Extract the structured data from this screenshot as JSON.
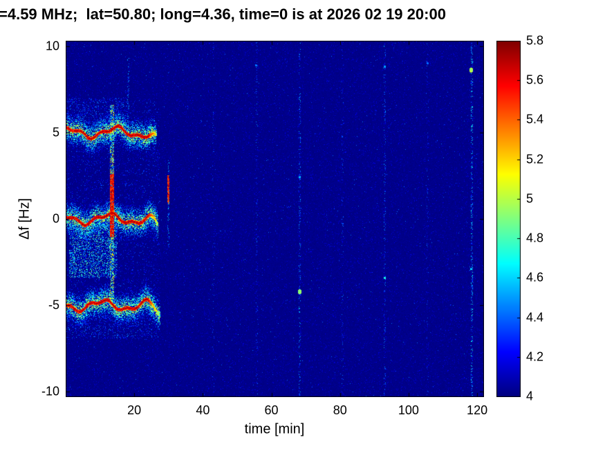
{
  "title": "=4.59 MHz;  lat=50.80; long=4.36, time=0 is at 2026 02 19 20:00",
  "chart_data": {
    "type": "heatmap",
    "title": "=4.59 MHz;  lat=50.80; long=4.36, time=0 is at 2026 02 19 20:00",
    "xlabel": "time [min]",
    "ylabel": "Δf [Hz]",
    "xlim": [
      0,
      122
    ],
    "ylim": [
      -10.3,
      10.3
    ],
    "xticks": [
      20,
      40,
      60,
      80,
      100,
      120
    ],
    "yticks": [
      -10,
      -5,
      0,
      5,
      10
    ],
    "colormap": "jet",
    "value_min": 4,
    "value_max": 5.8,
    "colorbar_ticks": [
      4,
      4.2,
      4.4,
      4.6,
      4.8,
      5,
      5.2,
      5.4,
      5.6,
      5.8
    ],
    "background_value": 4.0,
    "doppler_traces": [
      {
        "name": "upper-sideband-trace",
        "center_hz": 5,
        "t_start": 0,
        "t_end": 26.5,
        "peak_value": 5.8,
        "wiggle_hz": 0.3,
        "end_droop": true
      },
      {
        "name": "carrier-trace",
        "center_hz": 0,
        "t_start": 0,
        "t_end": 27.0,
        "peak_value": 5.8,
        "wiggle_hz": 0.3,
        "end_droop": true
      },
      {
        "name": "lower-sideband-trace",
        "center_hz": -5,
        "t_start": 0,
        "t_end": 27.5,
        "peak_value": 5.8,
        "wiggle_hz": 0.3,
        "end_droop": true
      }
    ],
    "speckle_regions": [
      {
        "t0": 0,
        "t1": 27.5,
        "f0": -7.0,
        "f1": 7.0,
        "count": 2600,
        "v_min": 4.06,
        "v_max": 4.4
      },
      {
        "t0": 1,
        "t1": 15.0,
        "f0": -3.4,
        "f1": -0.3,
        "count": 2200,
        "v_min": 4.1,
        "v_max": 4.9
      },
      {
        "t0": 0,
        "t1": 18.0,
        "f0": 5.4,
        "f1": 7.0,
        "count": 500,
        "v_min": 4.08,
        "v_max": 4.5
      },
      {
        "t0": 0,
        "t1": 27.0,
        "f0": -6.9,
        "f1": -5.4,
        "count": 500,
        "v_min": 4.08,
        "v_max": 4.5
      }
    ],
    "vertical_events": [
      {
        "t": 13.4,
        "f_min": -4.6,
        "f_max": 6.6,
        "width_min": 0.9,
        "density": 0.5,
        "v_min": 4.2,
        "v_max": 5.3,
        "core": {
          "f_min": -1.0,
          "f_max": 2.6,
          "value": 5.75
        }
      },
      {
        "t": 18.2,
        "f_min": 4.5,
        "f_max": 9.3,
        "width_min": 0.35,
        "density": 0.22,
        "v_min": 4.12,
        "v_max": 4.65
      },
      {
        "t": 29.8,
        "f_min": -1.6,
        "f_max": 3.4,
        "width_min": 0.5,
        "density": 0.25,
        "v_min": 4.15,
        "v_max": 4.7,
        "core": {
          "f_min": 0.9,
          "f_max": 2.5,
          "value": 5.7
        }
      },
      {
        "t": 43.0,
        "f_min": -10.3,
        "f_max": 10.3,
        "width_min": 0.35,
        "density": 0.05,
        "v_min": 4.1,
        "v_max": 4.45
      },
      {
        "t": 55.6,
        "f_min": -10.3,
        "f_max": 10.3,
        "width_min": 0.35,
        "density": 0.09,
        "v_min": 4.1,
        "v_max": 4.5
      },
      {
        "t": 68.2,
        "f_min": -10.3,
        "f_max": 10.3,
        "width_min": 0.4,
        "density": 0.18,
        "v_min": 4.1,
        "v_max": 4.6
      },
      {
        "t": 80.7,
        "f_min": -10.3,
        "f_max": 10.3,
        "width_min": 0.35,
        "density": 0.07,
        "v_min": 4.1,
        "v_max": 4.45
      },
      {
        "t": 93.0,
        "f_min": -10.3,
        "f_max": 10.3,
        "width_min": 0.4,
        "density": 0.15,
        "v_min": 4.1,
        "v_max": 4.55
      },
      {
        "t": 105.5,
        "f_min": -10.3,
        "f_max": 10.3,
        "width_min": 0.35,
        "density": 0.06,
        "v_min": 4.1,
        "v_max": 4.45
      },
      {
        "t": 118.3,
        "f_min": -10.3,
        "f_max": 10.3,
        "width_min": 0.45,
        "density": 0.26,
        "v_min": 4.1,
        "v_max": 4.75
      }
    ],
    "hot_spots": [
      {
        "t": 68.2,
        "f": -4.2,
        "value": 5.05,
        "radius_px": 2
      },
      {
        "t": 68.2,
        "f": 2.4,
        "value": 4.65,
        "radius_px": 1
      },
      {
        "t": 93.0,
        "f": -3.4,
        "value": 4.85,
        "radius_px": 1
      },
      {
        "t": 93.0,
        "f": 8.8,
        "value": 4.6,
        "radius_px": 1
      },
      {
        "t": 118.3,
        "f": 8.6,
        "value": 5.1,
        "radius_px": 2
      },
      {
        "t": 118.3,
        "f": -2.9,
        "value": 4.7,
        "radius_px": 1
      },
      {
        "t": 55.6,
        "f": 8.9,
        "value": 4.5,
        "radius_px": 1
      },
      {
        "t": 105.5,
        "f": 9.0,
        "value": 4.5,
        "radius_px": 1
      }
    ]
  }
}
